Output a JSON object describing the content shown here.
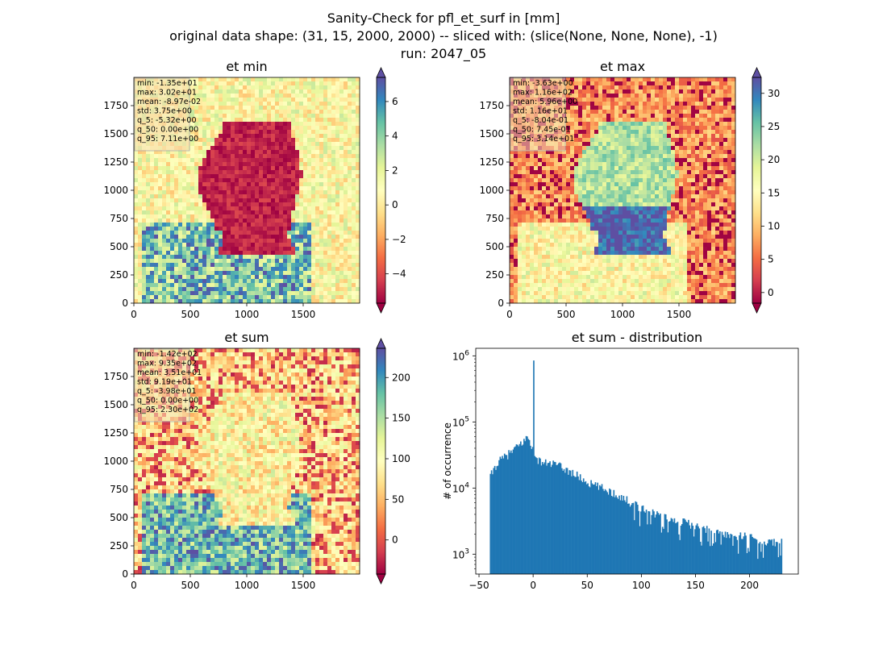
{
  "figure": {
    "title_lines": [
      "Sanity-Check for pfl_et_surf in [mm]",
      "original data shape: (31, 15, 2000, 2000) -- sliced with: (slice(None, None, None), -1)",
      "run: 2047_05"
    ]
  },
  "colors": {
    "spectral": [
      "#9e0142",
      "#d53e4f",
      "#f46d43",
      "#fdae61",
      "#fee08b",
      "#ffffbf",
      "#e6f598",
      "#abdda4",
      "#66c2a5",
      "#3288bd",
      "#5e4fa2"
    ],
    "histogram_bar": "#1f77b4"
  },
  "chart_data": [
    {
      "type": "heatmap",
      "title": "et min",
      "x_ticks": [
        "0",
        "500",
        "1000",
        "1500"
      ],
      "y_ticks": [
        "0",
        "250",
        "500",
        "750",
        "1000",
        "1250",
        "1500",
        "1750"
      ],
      "xlim": [
        0,
        2000
      ],
      "ylim": [
        0,
        2000
      ],
      "colorbar": {
        "range": [
          -5.7,
          7.4
        ],
        "ticks": [
          -4,
          -2,
          0,
          2,
          4,
          6
        ],
        "tick_labels": [
          "−4",
          "−2",
          "0",
          "2",
          "4",
          "6"
        ],
        "extend": "both"
      },
      "stats": [
        "min: -1.35e+01",
        "max: 3.02e+01",
        "mean: -8.97e-02",
        "std: 3.75e+00",
        "q_5: -5.32e+00",
        "q_50: 0.00e+00",
        "q_95: 7.11e+00"
      ]
    },
    {
      "type": "heatmap",
      "title": "et max",
      "x_ticks": [
        "0",
        "500",
        "1000",
        "1500"
      ],
      "y_ticks": [
        "0",
        "250",
        "500",
        "750",
        "1000",
        "1250",
        "1500",
        "1750"
      ],
      "xlim": [
        0,
        2000
      ],
      "ylim": [
        0,
        2000
      ],
      "colorbar": {
        "range": [
          -1.6,
          32.4
        ],
        "ticks": [
          0,
          5,
          10,
          15,
          20,
          25,
          30
        ],
        "tick_labels": [
          "0",
          "5",
          "10",
          "15",
          "20",
          "25",
          "30"
        ],
        "extend": "both"
      },
      "stats": [
        "min: -3.63e+00",
        "max: 1.16e+02",
        "mean: 5.96e+00",
        "std: 1.16e+01",
        "q_5: -8.04e-01",
        "q_50: 7.45e-01",
        "q_95: 3.14e+01"
      ]
    },
    {
      "type": "heatmap",
      "title": "et sum",
      "x_ticks": [
        "0",
        "500",
        "1000",
        "1500"
      ],
      "y_ticks": [
        "0",
        "250",
        "500",
        "750",
        "1000",
        "1250",
        "1500",
        "1750"
      ],
      "xlim": [
        0,
        2000
      ],
      "ylim": [
        0,
        2000
      ],
      "colorbar": {
        "range": [
          -42,
          236
        ],
        "ticks": [
          0,
          50,
          100,
          150,
          200
        ],
        "tick_labels": [
          "0",
          "50",
          "100",
          "150",
          "200"
        ],
        "extend": "both"
      },
      "stats": [
        "min: -1.42e+02",
        "max: 9.35e+02",
        "mean: 3.51e+01",
        "std: 9.19e+01",
        "q_5: -3.98e+01",
        "q_50: 0.00e+00",
        "q_95: 2.30e+02"
      ]
    },
    {
      "type": "bar",
      "title": "et sum - distribution",
      "xlabel": "",
      "ylabel": "# of occurrence",
      "y_scale": "log",
      "xlim": [
        -53,
        245
      ],
      "ylim": [
        500,
        1300000
      ],
      "x_ticks": [
        -50,
        0,
        50,
        100,
        150,
        200
      ],
      "x_tick_labels": [
        "−50",
        "0",
        "50",
        "100",
        "150",
        "200"
      ],
      "y_ticks": [
        1000,
        10000,
        100000,
        1000000
      ],
      "y_tick_labels": [
        "10^3",
        "10^4",
        "10^5",
        "10^6"
      ],
      "bins": {
        "start": -40,
        "end": 230
      },
      "anchors": [
        [
          -40,
          15000
        ],
        [
          -35,
          22000
        ],
        [
          -30,
          27000
        ],
        [
          -25,
          31000
        ],
        [
          -20,
          36000
        ],
        [
          -15,
          42000
        ],
        [
          -10,
          50000
        ],
        [
          -6,
          58000
        ],
        [
          -4,
          55000
        ],
        [
          -2,
          45000
        ],
        [
          -1,
          40000
        ],
        [
          0,
          850000
        ],
        [
          1,
          28000
        ],
        [
          5,
          26000
        ],
        [
          10,
          24000
        ],
        [
          20,
          23000
        ],
        [
          30,
          19000
        ],
        [
          40,
          15500
        ],
        [
          50,
          12000
        ],
        [
          60,
          10500
        ],
        [
          70,
          9000
        ],
        [
          80,
          7500
        ],
        [
          90,
          6000
        ],
        [
          100,
          5000
        ],
        [
          110,
          4300
        ],
        [
          120,
          3800
        ],
        [
          130,
          3400
        ],
        [
          140,
          3000
        ],
        [
          150,
          2700
        ],
        [
          160,
          2400
        ],
        [
          170,
          2200
        ],
        [
          180,
          2000
        ],
        [
          190,
          1900
        ],
        [
          200,
          1800
        ],
        [
          210,
          1600
        ],
        [
          220,
          1500
        ],
        [
          230,
          1500
        ]
      ]
    }
  ]
}
